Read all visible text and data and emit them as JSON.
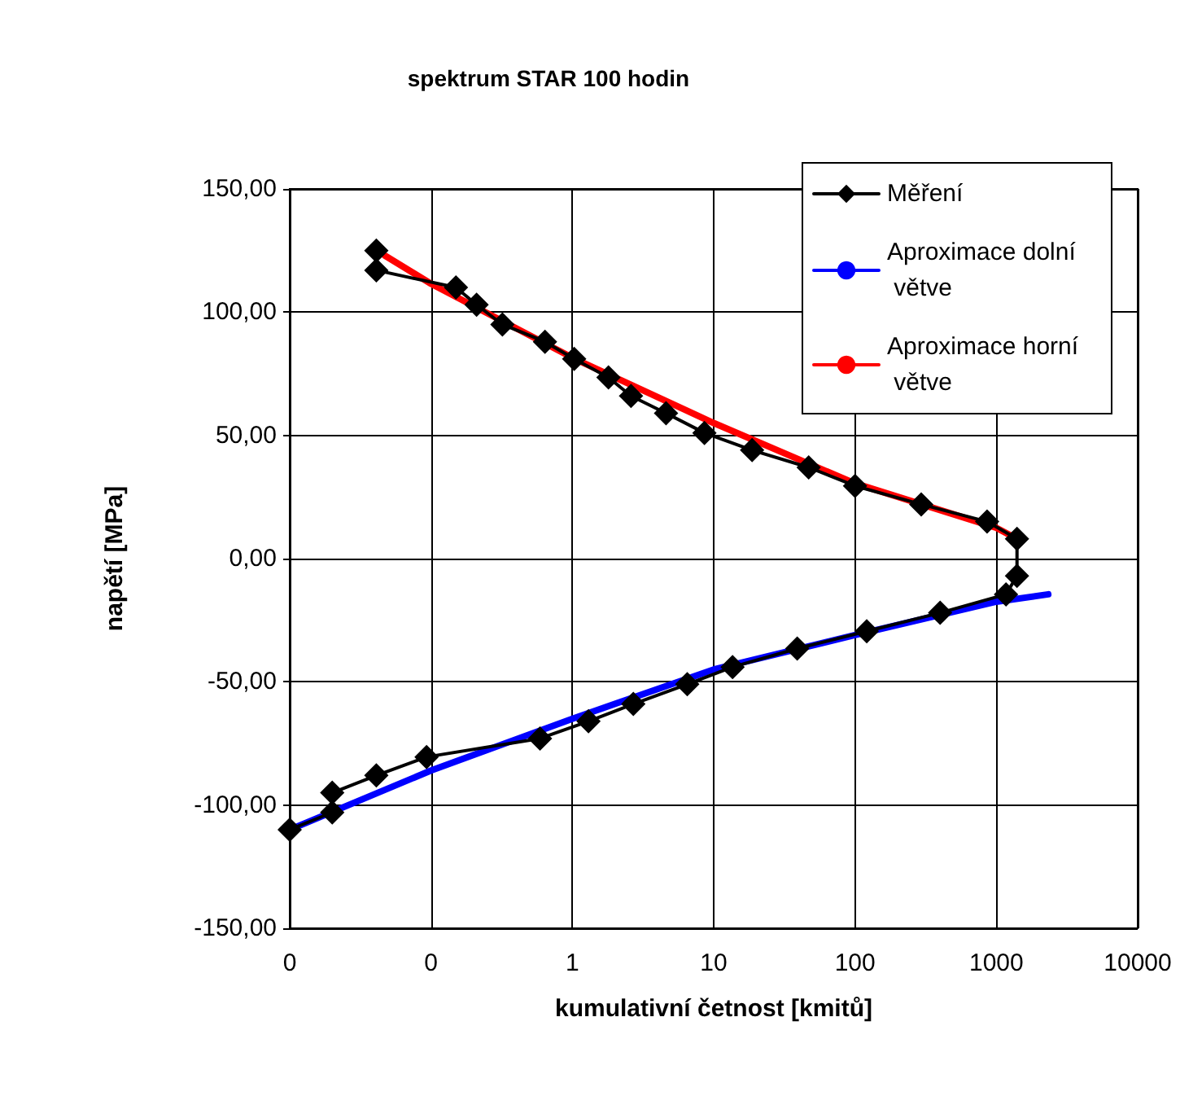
{
  "chart_data": {
    "type": "line",
    "title": "spektrum STAR 100 hodin",
    "xlabel": "kumulativní četnost [kmitů]",
    "ylabel": "napětí [MPa]",
    "log": "x",
    "grid": true,
    "legend": "top right",
    "line_style": "solid",
    "xlim": [
      0.01,
      10000
    ],
    "xticks": [
      {
        "value": 0.01,
        "label": "0"
      },
      {
        "value": 0.1,
        "label": "0"
      },
      1,
      10,
      100,
      1000,
      10000
    ],
    "ylim": [
      -150,
      150
    ],
    "yticks": [
      {
        "value": -150,
        "label": "-150,00"
      },
      {
        "value": -100,
        "label": "-100,00"
      },
      {
        "value": -50,
        "label": "-50,00"
      },
      {
        "value": 0,
        "label": "0,00"
      },
      {
        "value": 50,
        "label": "50,00"
      },
      {
        "value": 100,
        "label": "100,00"
      },
      {
        "value": 150,
        "label": "150,00"
      }
    ],
    "series": [
      {
        "name": "Měření",
        "color": "#000000",
        "marker": "diamond",
        "x": [
          0.041,
          0.041,
          0.15,
          0.21,
          0.32,
          0.64,
          1.03,
          1.8,
          2.6,
          4.6,
          8.6,
          18.7,
          47,
          100,
          294,
          860,
          1400,
          1400,
          1170,
          400,
          121,
          39,
          13.6,
          6.5,
          2.7,
          1.3,
          0.59,
          0.093,
          0.041,
          0.02,
          0.02,
          0.01
        ],
        "values": [
          125,
          117,
          110,
          103,
          95,
          88,
          81,
          73.5,
          66,
          59,
          51,
          44,
          37,
          29.5,
          22,
          15,
          8,
          -7,
          -14.5,
          -22,
          -29.5,
          -36.5,
          -44,
          -51,
          -59,
          -66,
          -73,
          -80.5,
          -88,
          -95,
          -103,
          -110
        ]
      },
      {
        "name": "Aproximace dolní větve",
        "color": "#0000ff",
        "marker": "none",
        "x": [
          0.01,
          0.1,
          1,
          10,
          100,
          1000,
          2330
        ],
        "values": [
          -110,
          -86,
          -65,
          -45,
          -31,
          -17.5,
          -14.5
        ]
      },
      {
        "name": "Aproximace horní větve",
        "color": "#ff0000",
        "marker": "none",
        "x": [
          0.047,
          0.1,
          1,
          10,
          100,
          1000,
          1400
        ],
        "values": [
          123,
          111.5,
          81.5,
          55,
          30.5,
          12.5,
          8
        ]
      }
    ]
  }
}
